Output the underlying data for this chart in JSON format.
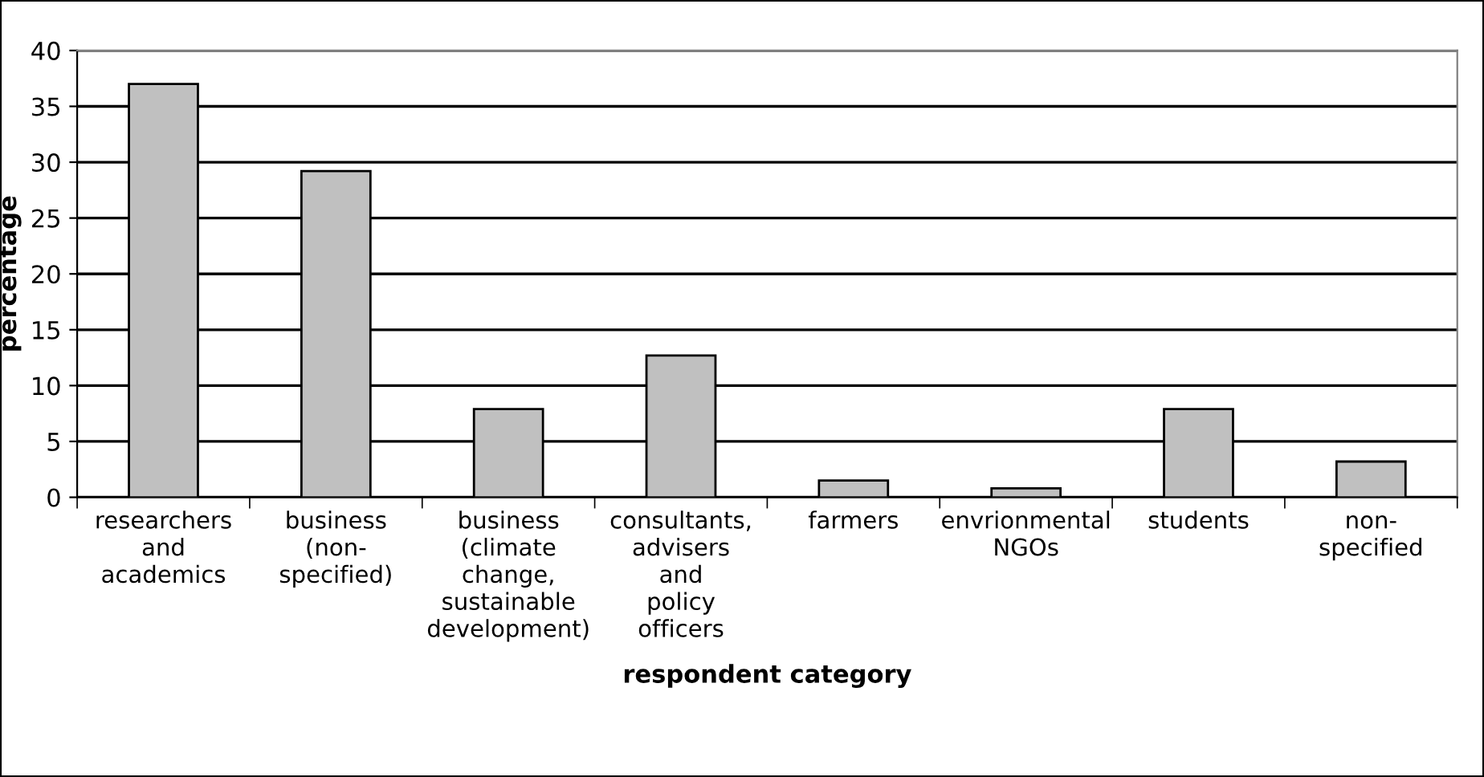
{
  "chart_data": {
    "type": "bar",
    "xlabel": "respondent category",
    "ylabel": "percentage",
    "categories": [
      "researchers\nand\nacademics",
      "business\n(non-\nspecified)",
      "business\n(climate\nchange,\nsustainable\ndevelopment)",
      "consultants,\nadvisers\nand\npolicy\nofficers",
      "farmers",
      "envrionmental\nNGOs",
      "students",
      "non-\nspecified"
    ],
    "values": [
      37.0,
      29.2,
      7.9,
      12.7,
      1.5,
      0.8,
      7.9,
      3.2
    ],
    "color": "#c0c0c0",
    "ylim": [
      0,
      40
    ],
    "yticks": [
      0,
      5,
      10,
      15,
      20,
      25,
      30,
      35,
      40
    ],
    "grid": "y"
  }
}
